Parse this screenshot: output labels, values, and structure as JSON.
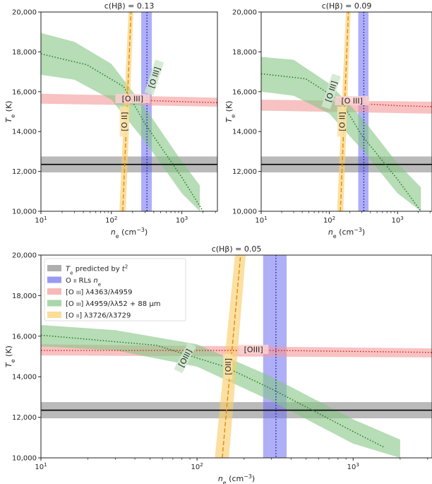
{
  "chart_data": [
    {
      "type": "line",
      "title": "c(Hβ) = 0.13",
      "xlabel": "n_e (cm⁻³)",
      "ylabel": "T_e (K)",
      "xscale": "log",
      "xlim": [
        10,
        3200
      ],
      "ylim": [
        10000,
        20000
      ],
      "yticks": [
        10000,
        12000,
        14000,
        16000,
        18000,
        20000
      ],
      "ytick_labels": [
        "10,000",
        "12,000",
        "14,000",
        "16,000",
        "18,000",
        "20,000"
      ],
      "xticks": [
        10,
        100,
        1000
      ],
      "xtick_labels": [
        "10",
        "10",
        "10"
      ],
      "xtick_exps": [
        "1",
        "2",
        "3"
      ],
      "t2_band": {
        "center": 12350,
        "low": 11950,
        "high": 12750
      },
      "oii_rls_ne": {
        "center": 320,
        "low": 265,
        "high": 375
      },
      "oiii_4363": {
        "band": [
          [
            10,
            15400,
            15900
          ],
          [
            3200,
            15250,
            15700
          ]
        ],
        "dotted": [
          [
            160,
            15600
          ],
          [
            1000,
            15500
          ],
          [
            3200,
            15450
          ]
        ]
      },
      "oiii_4959_88": {
        "band": [
          [
            10,
            16850,
            18950
          ],
          [
            30,
            16600,
            18500
          ],
          [
            100,
            15600,
            17400
          ],
          [
            300,
            13500,
            15200
          ],
          [
            1000,
            10900,
            12500
          ],
          [
            1800,
            10000,
            11300
          ]
        ],
        "dotted": [
          [
            10,
            17900
          ],
          [
            45,
            17350
          ],
          [
            150,
            16250
          ],
          [
            300,
            14400
          ],
          [
            1000,
            11700
          ],
          [
            2000,
            10000
          ]
        ]
      },
      "oii_3726": {
        "band": [
          [
            130,
            160,
            10000
          ],
          [
            175,
            205,
            20000
          ]
        ],
        "line": [
          [
            145,
            10000
          ],
          [
            190,
            20000
          ]
        ]
      },
      "labels": [
        {
          "text": "[O III]",
          "series": "oiii_4959_88",
          "x": 420,
          "y": 16700,
          "rot": -72
        },
        {
          "text": "[O III]",
          "series": "oiii_4363",
          "x": 200,
          "y": 15600,
          "rot": 0
        },
        {
          "text": "[O II]",
          "series": "oii_3726",
          "x": 158,
          "y": 14500,
          "rot": -90
        }
      ]
    },
    {
      "type": "line",
      "title": "c(Hβ) = 0.09",
      "xlabel": "n_e (cm⁻³)",
      "ylabel": "T_e (K)",
      "xscale": "log",
      "xlim": [
        10,
        3200
      ],
      "ylim": [
        10000,
        20000
      ],
      "yticks": [
        10000,
        12000,
        14000,
        16000,
        18000,
        20000
      ],
      "ytick_labels": [
        "10,000",
        "12,000",
        "14,000",
        "16,000",
        "18,000",
        "20,000"
      ],
      "xticks": [
        10,
        100,
        1000
      ],
      "xtick_labels": [
        "10",
        "10",
        "10"
      ],
      "xtick_exps": [
        "1",
        "2",
        "3"
      ],
      "t2_band": {
        "center": 12350,
        "low": 11950,
        "high": 12750
      },
      "oii_rls_ne": {
        "center": 320,
        "low": 265,
        "high": 375
      },
      "oiii_4363": {
        "band": [
          [
            10,
            15050,
            15600
          ],
          [
            3200,
            14900,
            15500
          ]
        ],
        "dotted": [
          [
            280,
            15400
          ],
          [
            1000,
            15300
          ],
          [
            3200,
            15250
          ]
        ]
      },
      "oiii_4959_88": {
        "band": [
          [
            10,
            16000,
            17750
          ],
          [
            30,
            15800,
            17600
          ],
          [
            100,
            14900,
            16400
          ],
          [
            300,
            13100,
            14700
          ],
          [
            1000,
            10900,
            12400
          ],
          [
            2200,
            10000,
            11200
          ]
        ],
        "dotted": [
          [
            10,
            16900
          ],
          [
            45,
            16650
          ],
          [
            150,
            15500
          ],
          [
            300,
            13800
          ],
          [
            1000,
            11600
          ],
          [
            2200,
            10000
          ]
        ]
      },
      "oii_3726": {
        "band": [
          [
            130,
            160,
            10000
          ],
          [
            175,
            205,
            20000
          ]
        ],
        "line": [
          [
            145,
            10000
          ],
          [
            190,
            20000
          ]
        ]
      },
      "labels": [
        {
          "text": "[O III]",
          "series": "oiii_4959_88",
          "x": 110,
          "y": 16000,
          "rot": -72
        },
        {
          "text": "[O III]",
          "series": "oiii_4363",
          "x": 215,
          "y": 15500,
          "rot": 0
        },
        {
          "text": "[O II]",
          "series": "oii_3726",
          "x": 158,
          "y": 14500,
          "rot": -90
        }
      ]
    },
    {
      "type": "line",
      "title": "c(Hβ) = 0.05",
      "xlabel": "n_e (cm⁻³)",
      "ylabel": "T_e (K)",
      "xscale": "log",
      "xlim": [
        10,
        3200
      ],
      "ylim": [
        10000,
        20000
      ],
      "yticks": [
        10000,
        12000,
        14000,
        16000,
        18000,
        20000
      ],
      "ytick_labels": [
        "10,000",
        "12,000",
        "14,000",
        "16,000",
        "18,000",
        "20,000"
      ],
      "xticks": [
        10,
        100,
        1000
      ],
      "xtick_labels": [
        "10",
        "10",
        "10"
      ],
      "xtick_exps": [
        "1",
        "2",
        "3"
      ],
      "t2_band": {
        "center": 12350,
        "low": 11950,
        "high": 12750
      },
      "oii_rls_ne": {
        "center": 320,
        "low": 265,
        "high": 375
      },
      "oiii_4363": {
        "band": [
          [
            10,
            15050,
            15600
          ],
          [
            3200,
            14950,
            15400
          ]
        ],
        "dotted": [
          [
            10,
            15300
          ],
          [
            70,
            15300
          ],
          [
            300,
            15300
          ],
          [
            1000,
            15250
          ],
          [
            3200,
            15200
          ]
        ]
      },
      "oiii_4959_88": {
        "band": [
          [
            10,
            15500,
            16550
          ],
          [
            30,
            15300,
            16300
          ],
          [
            100,
            14500,
            15600
          ],
          [
            300,
            12800,
            14000
          ],
          [
            1000,
            10700,
            11900
          ],
          [
            2000,
            10000,
            10900
          ]
        ],
        "dotted": [
          [
            10,
            16050
          ],
          [
            55,
            15550
          ],
          [
            150,
            14500
          ],
          [
            300,
            13400
          ],
          [
            1000,
            11300
          ],
          [
            1600,
            10500
          ]
        ]
      },
      "oii_3726": {
        "band": [
          [
            130,
            160,
            10000
          ],
          [
            175,
            205,
            20000
          ]
        ],
        "line": [
          [
            145,
            10000
          ],
          [
            190,
            20000
          ]
        ]
      },
      "labels": [
        {
          "text": "[OIII]",
          "series": "oiii_4959_88",
          "x": 85,
          "y": 14900,
          "rot": -62
        },
        {
          "text": "[OIII]",
          "series": "oiii_4363",
          "x": 230,
          "y": 15300,
          "rot": 0
        },
        {
          "text": "[OII]",
          "series": "oii_3726",
          "x": 160,
          "y": 14500,
          "rot": -90
        }
      ],
      "legend": {
        "position": "top-left",
        "entries": [
          {
            "series": "t2",
            "label": "T_e predicted by t²"
          },
          {
            "series": "oii_rls",
            "label": "O II RLs n_e"
          },
          {
            "series": "oiii_4363",
            "label": "[O III] λ4363/λ4959"
          },
          {
            "series": "oiii_4959_88",
            "label": "[O III] λ4959/λλ52 + 88 μm"
          },
          {
            "series": "oii_3726",
            "label": "[O II] λ3726/λ3729"
          }
        ]
      }
    }
  ],
  "colors": {
    "t2": "#8c8c8c",
    "t2_line": "#000000",
    "oii_rls": "#6e6ef0",
    "oii_rls_line": "#1a1ab5",
    "oiii_4363": "#f49a9a",
    "oiii_4363_line": "#d21f1f",
    "oiii_4959_88": "#86c686",
    "oiii_4959_88_line": "#1f7a1f",
    "oii_3726": "#f9cf6e",
    "oii_3726_line": "#e58a0c",
    "axis": "#222222"
  }
}
